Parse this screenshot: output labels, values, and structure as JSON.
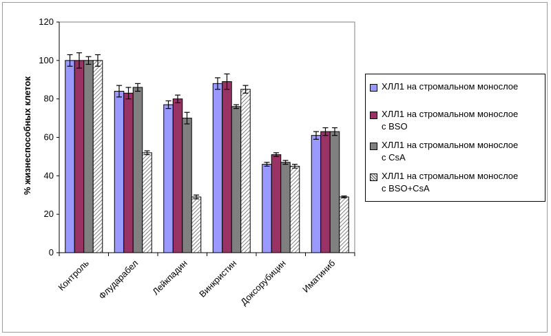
{
  "colors": {
    "series": [
      "#9999ff",
      "#993366",
      "#808080",
      "pattern"
    ],
    "plot_border": "#808080",
    "grid": "#000000"
  },
  "chart_data": {
    "type": "bar",
    "title": "",
    "xlabel": "",
    "ylabel": "% жизнеспособных клеток",
    "ylim": [
      0,
      120
    ],
    "yticks": [
      "0",
      "20",
      "40",
      "60",
      "80",
      "100",
      "120"
    ],
    "grid": false,
    "legend_position": "right",
    "categories": [
      "Контроль",
      "Флударабел",
      "Лейкпадин",
      "Винкристин",
      "Доксорубицин",
      "Иматиниб"
    ],
    "series": [
      {
        "name": "ХЛЛ1 на стромальном монослое",
        "values": [
          100,
          84,
          77,
          88,
          46,
          61
        ],
        "errors": [
          3,
          3,
          2,
          3,
          1,
          2
        ]
      },
      {
        "name": "ХЛЛ1 на стромальном монослое с BSO",
        "values": [
          100,
          83,
          80,
          89,
          51,
          63
        ],
        "errors": [
          4,
          3,
          2,
          4,
          1,
          2
        ]
      },
      {
        "name": "ХЛЛ1 на стромальном монослое с CsA",
        "values": [
          100,
          86,
          70,
          76,
          47,
          63
        ],
        "errors": [
          2,
          2,
          3,
          1,
          1,
          2
        ]
      },
      {
        "name": "ХЛЛ1 на стромальном монослое с BSO+CsA",
        "values": [
          100,
          52,
          29,
          85,
          45,
          29
        ],
        "errors": [
          3,
          1,
          1,
          2,
          1,
          0.5
        ]
      }
    ]
  },
  "legend": {
    "items": [
      "ХЛЛ1 на стромальном монослое",
      "ХЛЛ1 на стромальном монослое\nс BSO",
      "ХЛЛ1 на стромальном монослое\nс CsA",
      "ХЛЛ1 на стромальном монослое\nс BSO+CsA"
    ]
  }
}
